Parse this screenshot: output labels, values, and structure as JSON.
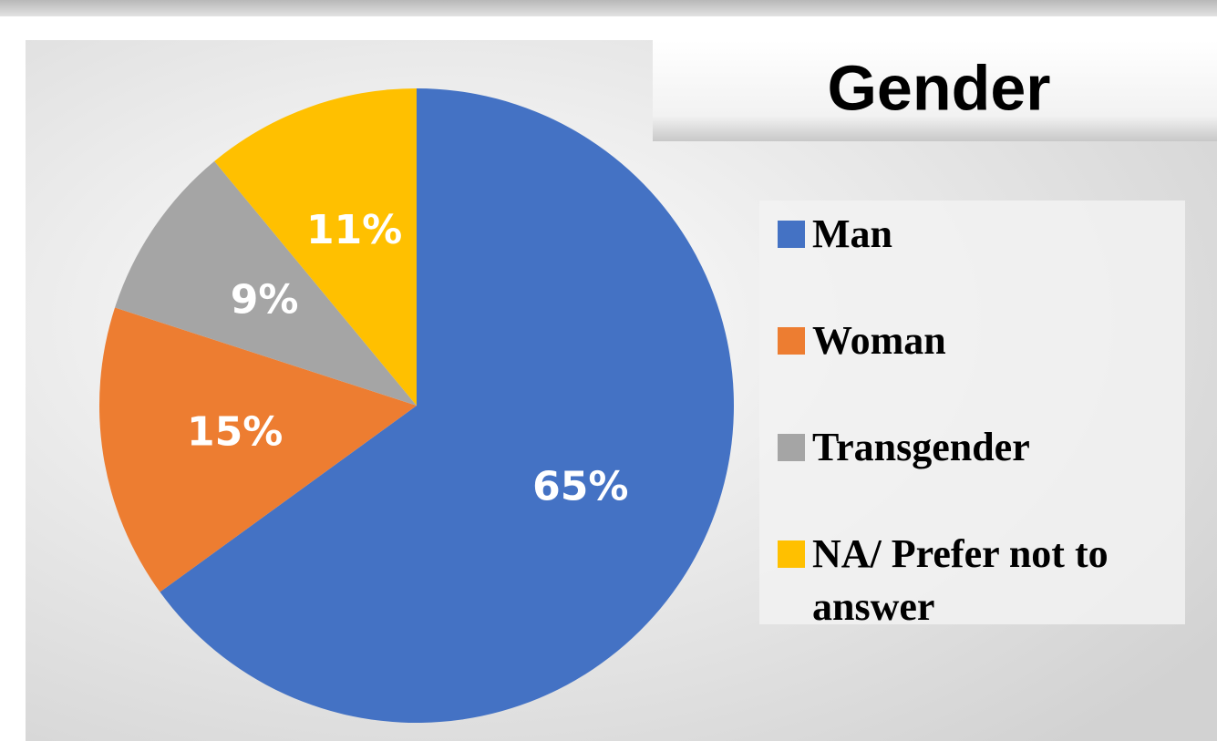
{
  "chart_data": {
    "type": "pie",
    "title": "Gender",
    "categories": [
      "Man",
      "Woman",
      "Transgender",
      "NA/ Prefer not to answer"
    ],
    "values": [
      65,
      15,
      9,
      11
    ],
    "value_labels": [
      "65%",
      "15%",
      "9%",
      "11%"
    ],
    "colors": [
      "#4472c4",
      "#ed7d31",
      "#a5a5a5",
      "#ffc000"
    ],
    "legend": "right"
  }
}
